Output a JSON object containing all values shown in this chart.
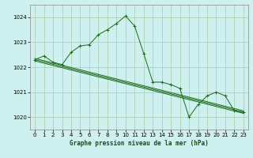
{
  "title": "Graphe pression niveau de la mer (hPa)",
  "background_color": "#cef0ee",
  "grid_color": "#aaccaa",
  "line_color": "#1a6b1a",
  "xlim": [
    -0.5,
    23.5
  ],
  "ylim": [
    1019.5,
    1024.5
  ],
  "yticks": [
    1020,
    1021,
    1022,
    1023,
    1024
  ],
  "xticks": [
    0,
    1,
    2,
    3,
    4,
    5,
    6,
    7,
    8,
    9,
    10,
    11,
    12,
    13,
    14,
    15,
    16,
    17,
    18,
    19,
    20,
    21,
    22,
    23
  ],
  "series_straight": [
    {
      "x": [
        0,
        23
      ],
      "y": [
        1022.3,
        1020.2
      ]
    },
    {
      "x": [
        0,
        23
      ],
      "y": [
        1022.25,
        1020.15
      ]
    },
    {
      "x": [
        0,
        23
      ],
      "y": [
        1022.35,
        1020.25
      ]
    }
  ],
  "series_peaked": {
    "x": [
      0,
      1,
      2,
      3,
      4,
      5,
      6,
      7,
      8,
      9,
      10,
      11,
      12,
      13,
      14,
      15,
      16,
      17,
      18,
      19,
      20,
      21,
      22,
      23
    ],
    "y": [
      1022.3,
      1022.45,
      1022.2,
      1022.1,
      1022.6,
      1022.85,
      1022.9,
      1023.3,
      1023.5,
      1023.75,
      1024.05,
      1023.65,
      1022.55,
      1021.4,
      1021.4,
      1021.3,
      1021.15,
      1020.0,
      1020.5,
      1020.85,
      1021.0,
      1020.85,
      1020.25,
      1020.2
    ]
  },
  "series_short": {
    "x": [
      0,
      1,
      2,
      3,
      4,
      5
    ],
    "y": [
      1022.3,
      1022.45,
      1022.2,
      1022.1,
      1022.6,
      1022.5
    ]
  }
}
